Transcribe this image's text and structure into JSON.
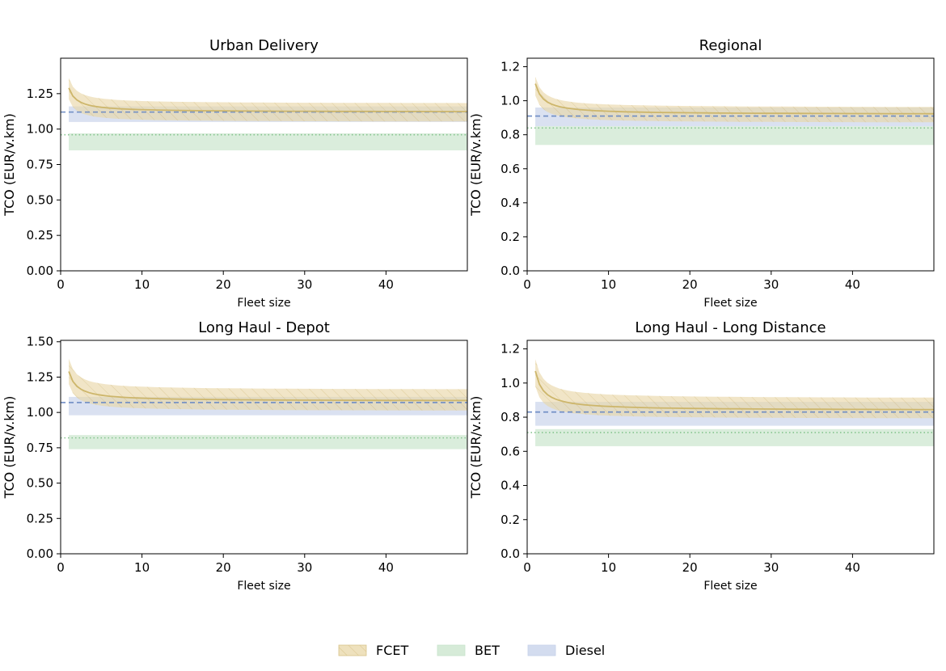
{
  "legend": {
    "items": [
      {
        "label": "FCET",
        "color": "#d4b35a",
        "hatched": true
      },
      {
        "label": "BET",
        "color": "#9fd3a8",
        "hatched": false
      },
      {
        "label": "Diesel",
        "color": "#a8b8e0",
        "hatched": false
      }
    ]
  },
  "colors": {
    "fcet_line": "#cdb66b",
    "fcet_fill": "#e5d3a0",
    "bet_line": "#86c58f",
    "bet_fill": "#d6ebd8",
    "diesel_line": "#6e8cc4",
    "diesel_fill": "#d3dcef"
  },
  "chart_data": [
    {
      "type": "line",
      "title": "Urban Delivery",
      "xlabel": "Fleet size",
      "ylabel": "TCO (EUR/v.km)",
      "xlim": [
        0,
        50
      ],
      "ylim": [
        0,
        1.5
      ],
      "xticks": [
        0,
        10,
        20,
        30,
        40
      ],
      "yticks": [
        0.0,
        0.25,
        0.5,
        0.75,
        1.0,
        1.25
      ],
      "ytick_labels": [
        "0.00",
        "0.25",
        "0.50",
        "0.75",
        "1.00",
        "1.25"
      ],
      "fcet": {
        "start": 1.29,
        "end": 1.12,
        "low_start": 1.21,
        "low_end": 1.05,
        "high_start": 1.36,
        "high_end": 1.18
      },
      "bet": {
        "mid": 0.96,
        "low": 0.85,
        "high": 0.97
      },
      "diesel": {
        "mid": 1.12,
        "low": 1.05,
        "high": 1.16
      }
    },
    {
      "type": "line",
      "title": "Regional",
      "xlabel": "Fleet size",
      "ylabel": "TCO (EUR/v.km)",
      "xlim": [
        0,
        50
      ],
      "ylim": [
        0,
        1.25
      ],
      "xticks": [
        0,
        10,
        20,
        30,
        40
      ],
      "yticks": [
        0.0,
        0.2,
        0.4,
        0.6,
        0.8,
        1.0,
        1.2
      ],
      "ytick_labels": [
        "0.0",
        "0.2",
        "0.4",
        "0.6",
        "0.8",
        "1.0",
        "1.2"
      ],
      "fcet": {
        "start": 1.1,
        "end": 0.92,
        "low_start": 1.03,
        "low_end": 0.87,
        "high_start": 1.14,
        "high_end": 0.96
      },
      "bet": {
        "mid": 0.84,
        "low": 0.74,
        "high": 0.85
      },
      "diesel": {
        "mid": 0.91,
        "low": 0.85,
        "high": 0.96
      }
    },
    {
      "type": "line",
      "title": "Long Haul - Depot",
      "xlabel": "Fleet size",
      "ylabel": "TCO (EUR/v.km)",
      "xlim": [
        0,
        50
      ],
      "ylim": [
        0,
        1.51
      ],
      "xticks": [
        0,
        10,
        20,
        30,
        40
      ],
      "yticks": [
        0.0,
        0.25,
        0.5,
        0.75,
        1.0,
        1.25,
        1.5
      ],
      "ytick_labels": [
        "0.00",
        "0.25",
        "0.50",
        "0.75",
        "1.00",
        "1.25",
        "1.50"
      ],
      "fcet": {
        "start": 1.29,
        "end": 1.08,
        "low_start": 1.2,
        "low_end": 1.01,
        "high_start": 1.38,
        "high_end": 1.16
      },
      "bet": {
        "mid": 0.82,
        "low": 0.74,
        "high": 0.84
      },
      "diesel": {
        "mid": 1.07,
        "low": 0.98,
        "high": 1.11
      }
    },
    {
      "type": "line",
      "title": "Long Haul - Long Distance",
      "xlabel": "Fleet size",
      "ylabel": "TCO (EUR/v.km)",
      "xlim": [
        0,
        50
      ],
      "ylim": [
        0,
        1.25
      ],
      "xticks": [
        0,
        10,
        20,
        30,
        40
      ],
      "yticks": [
        0.0,
        0.2,
        0.4,
        0.6,
        0.8,
        1.0,
        1.2
      ],
      "ytick_labels": [
        "0.0",
        "0.2",
        "0.4",
        "0.6",
        "0.8",
        "1.0",
        "1.2"
      ],
      "fcet": {
        "start": 1.07,
        "end": 0.84,
        "low_start": 0.98,
        "low_end": 0.79,
        "high_start": 1.14,
        "high_end": 0.91
      },
      "bet": {
        "mid": 0.71,
        "low": 0.63,
        "high": 0.73
      },
      "diesel": {
        "mid": 0.83,
        "low": 0.75,
        "high": 0.89
      }
    }
  ]
}
